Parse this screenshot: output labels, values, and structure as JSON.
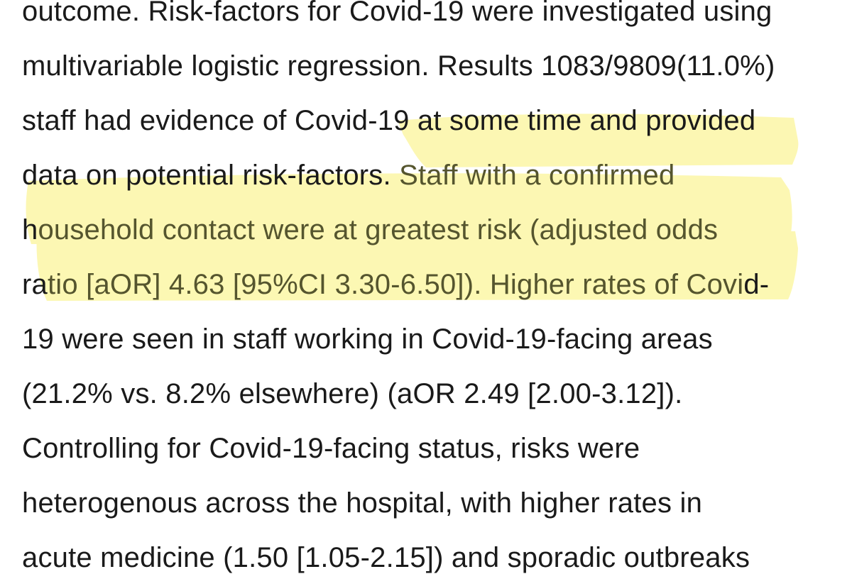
{
  "highlight_color": "#fbf59a",
  "lines": [
    {
      "before": "outcome. Risk-factors for Covid-19 were investigated using",
      "highlighted": "",
      "after": ""
    },
    {
      "before": "multivariable logistic regression. Results 1083/9809(11.0%)",
      "highlighted": "",
      "after": ""
    },
    {
      "before": "staff had evidence of Covid-19 at some time and provided",
      "highlighted": "",
      "after": ""
    },
    {
      "before": "data on potential risk-factors. ",
      "highlighted": "Staff with a confirmed",
      "after": ""
    },
    {
      "before": "h",
      "highlighted": "ousehold contact were at greatest risk (adjusted odds",
      "after": ""
    },
    {
      "before": "ra",
      "highlighted": "tio [aOR] 4.63 [95%CI 3.30-6.50]). Higher rates of Covi",
      "after": "d-"
    },
    {
      "before": "19 were seen in staff working in Covid-19-facing areas",
      "highlighted": "",
      "after": ""
    },
    {
      "before": "(21.2% vs. 8.2% elsewhere) (aOR 2.49 [2.00-3.12]).",
      "highlighted": "",
      "after": ""
    },
    {
      "before": "Controlling for Covid-19-facing status, risks were",
      "highlighted": "",
      "after": ""
    },
    {
      "before": "heterogenous across the hospital, with higher rates in",
      "highlighted": "",
      "after": ""
    },
    {
      "before": "acute medicine (1.50 [1.05-2.15]) and sporadic outbreaks",
      "highlighted": "",
      "after": ""
    }
  ]
}
